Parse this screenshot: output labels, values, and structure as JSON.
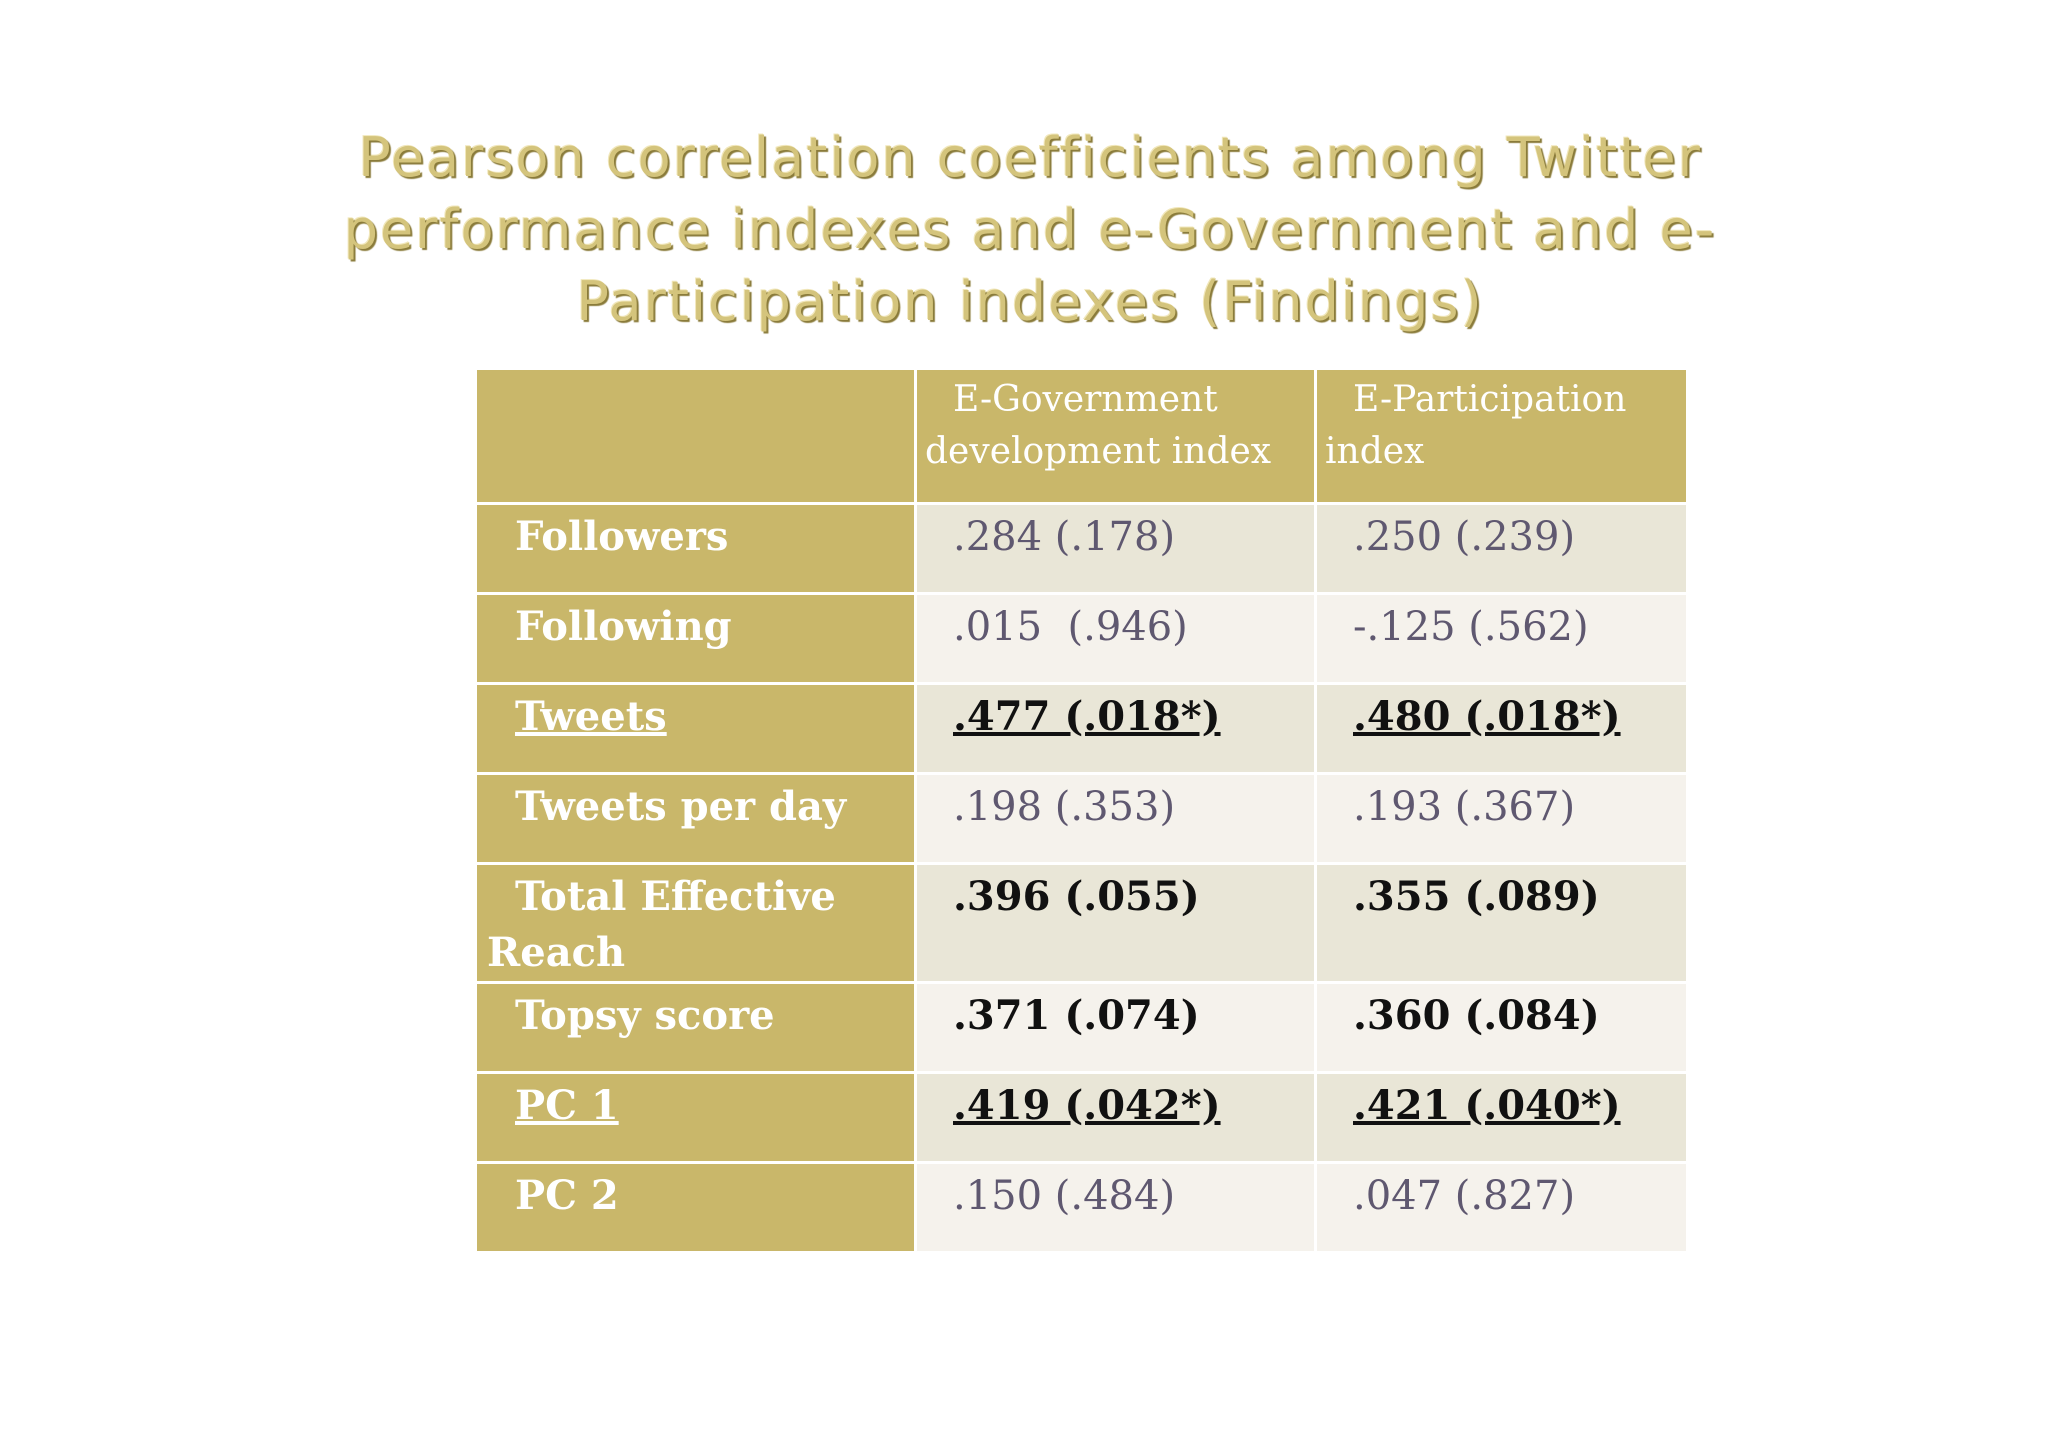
{
  "slide": {
    "title": "Pearson correlation coefficients among Twitter performance indexes and e-Government and e-Participation indexes  (Findings)"
  },
  "table": {
    "headers": {
      "corner": "",
      "egov": "E-Government development index",
      "epart": "E-Participation index"
    },
    "rows": [
      {
        "label": "Followers",
        "egov": ".284 (.178)",
        "epart": ".250 (.239)"
      },
      {
        "label": "Following",
        "egov": ".015  (.946)",
        "epart": "-.125 (.562)"
      },
      {
        "label": "Tweets",
        "egov": ".477 (.018*)",
        "epart": ".480 (.018*)"
      },
      {
        "label": "Tweets per day",
        "egov": ".198 (.353)",
        "epart": ".193 (.367)"
      },
      {
        "label": "Total Effective Reach",
        "egov": ".396 (.055)",
        "epart": ".355 (.089)"
      },
      {
        "label": "Topsy score",
        "egov": ".371 (.074)",
        "epart": ".360 (.084)"
      },
      {
        "label": "PC 1",
        "egov": ".419 (.042*)",
        "epart": ".421 (.040*)"
      },
      {
        "label": "PC 2",
        "egov": ".150 (.484)",
        "epart": ".047 (.827)"
      }
    ]
  }
}
